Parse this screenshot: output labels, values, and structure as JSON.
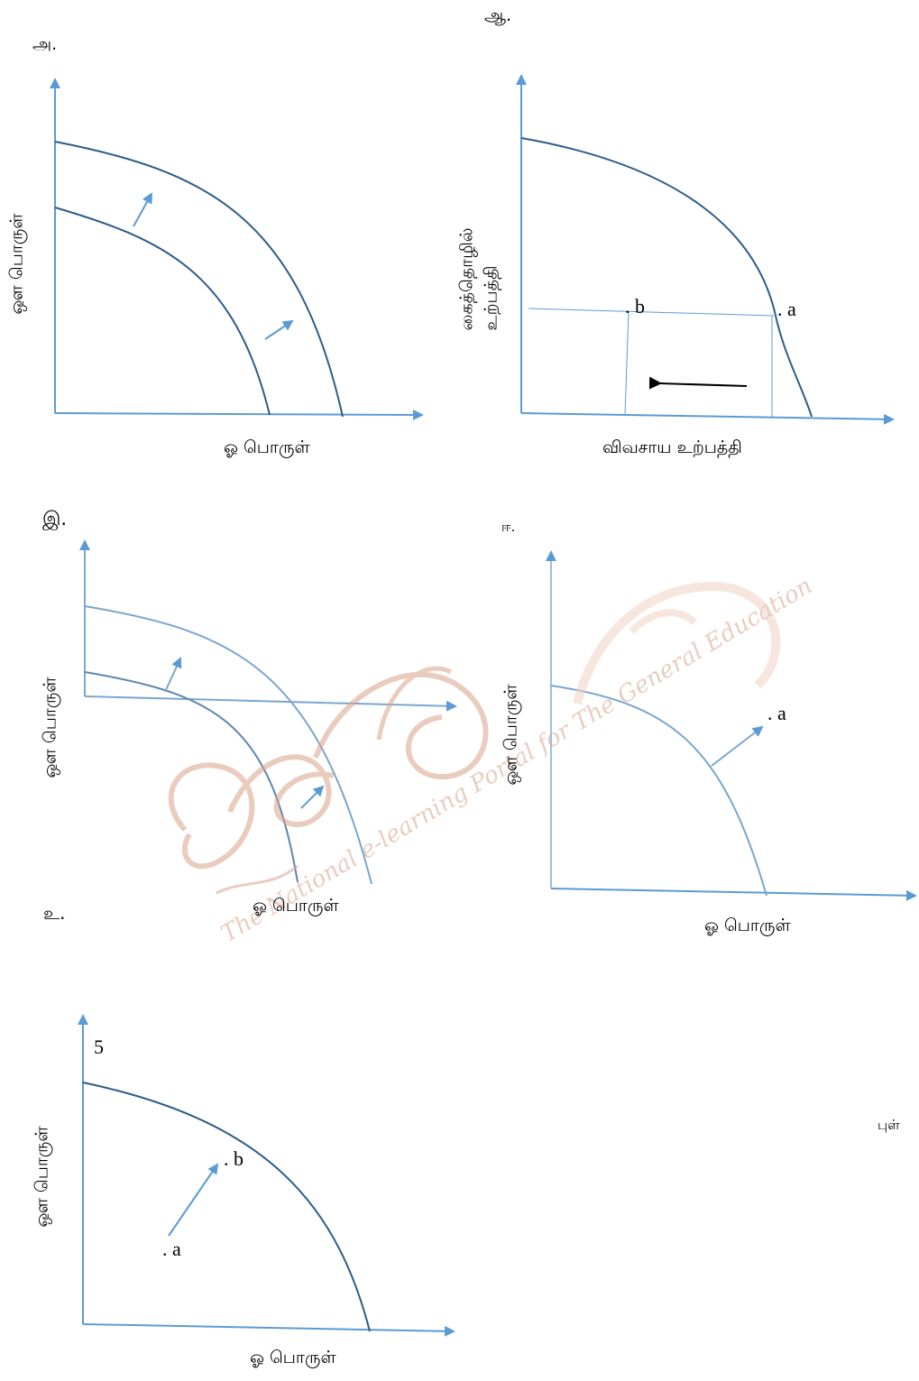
{
  "panels": {
    "a": {
      "marker": "அ.",
      "ylabel": "ஔ பொருள்",
      "xlabel": "ஓ பொருள்"
    },
    "b": {
      "marker": "ஆ.",
      "ylabel_line1": "கைத்தொழில்",
      "ylabel_line2": "உற்பத்தி",
      "xlabel": "விவசாய உற்பத்தி",
      "point_a": ". a",
      "point_b": ". b"
    },
    "c": {
      "marker": "இ.",
      "ylabel": "ஔ பொருள்",
      "xlabel": "ஓ பொருள்"
    },
    "d": {
      "marker": "ஈ.",
      "ylabel": "ஔ பொருள்",
      "xlabel": "ஓ பொருள்",
      "point_a": ". a"
    },
    "e": {
      "marker": "உ.",
      "ylabel": "ஔ பொருள்",
      "xlabel": "ஓ பொருள்",
      "y_tick": "5",
      "point_a": ". a",
      "point_b": ". b"
    }
  },
  "side_text": "புள்",
  "watermark": {
    "text": "The National e-learning Portal for The General Education"
  },
  "colors": {
    "axis": "#5b9bd5",
    "curve": "#2e5c8a",
    "curve_light": "#7aa6cf",
    "arrow_dark": "#000000",
    "watermark": "#d9a48c"
  }
}
